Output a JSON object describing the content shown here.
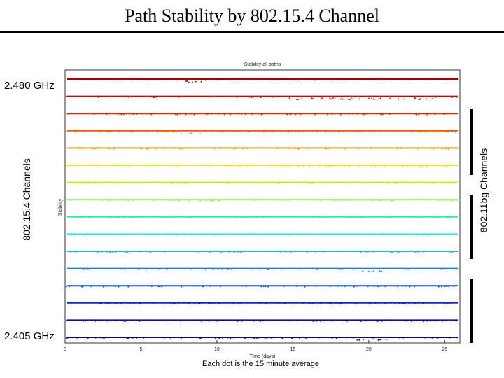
{
  "slide": {
    "title": "Path Stability by 802.15.4 Channel",
    "label_top": "2.480 GHz",
    "label_bottom": "2.405 GHz",
    "left_axis_label": "802.15.4 Channels",
    "right_label": "802.11bg Channels",
    "caption": "Each dot is the 15 minute average"
  },
  "chart_data": {
    "type": "scatter",
    "title": "Stability all paths",
    "xlabel": "Time (days)",
    "ylabel": "Stability",
    "xlim": [
      0,
      26
    ],
    "xticks": [
      0,
      5,
      10,
      15,
      20,
      25
    ],
    "xtick_labels": [
      "0",
      "5",
      "10",
      "15",
      "20",
      "25"
    ],
    "grid": false,
    "series": [
      {
        "color": "#a00000",
        "level": 1.0
      },
      {
        "color": "#d00000",
        "level": 1.0
      },
      {
        "color": "#ec2400",
        "level": 1.0
      },
      {
        "color": "#f25a00",
        "level": 1.0
      },
      {
        "color": "#f79a00",
        "level": 1.0
      },
      {
        "color": "#f5e400",
        "level": 1.0
      },
      {
        "color": "#c8ea00",
        "level": 1.0
      },
      {
        "color": "#88f040",
        "level": 1.0
      },
      {
        "color": "#30f0a0",
        "level": 1.0
      },
      {
        "color": "#30e8e0",
        "level": 1.0
      },
      {
        "color": "#18b8ea",
        "level": 1.0
      },
      {
        "color": "#1a80e0",
        "level": 1.0
      },
      {
        "color": "#1048d0",
        "level": 1.0
      },
      {
        "color": "#1428c0",
        "level": 1.0
      },
      {
        "color": "#0c0ca8",
        "level": 1.0
      },
      {
        "color": "#06067c",
        "level": 1.0
      }
    ],
    "dips": [
      {
        "series": 0,
        "x0": 7.5,
        "x1": 9.0,
        "depth": 0.35
      },
      {
        "series": 1,
        "x0": 13.8,
        "x1": 24.3,
        "depth": 0.35
      },
      {
        "series": 3,
        "x0": 7.3,
        "x1": 9.2,
        "depth": 0.5
      },
      {
        "series": 5,
        "x0": 13.8,
        "x1": 24.0,
        "depth": 0.2
      },
      {
        "series": 11,
        "x0": 19.2,
        "x1": 21.3,
        "depth": 0.35
      },
      {
        "series": 15,
        "x0": 19.0,
        "x1": 22.0,
        "depth": 0.3
      }
    ]
  }
}
